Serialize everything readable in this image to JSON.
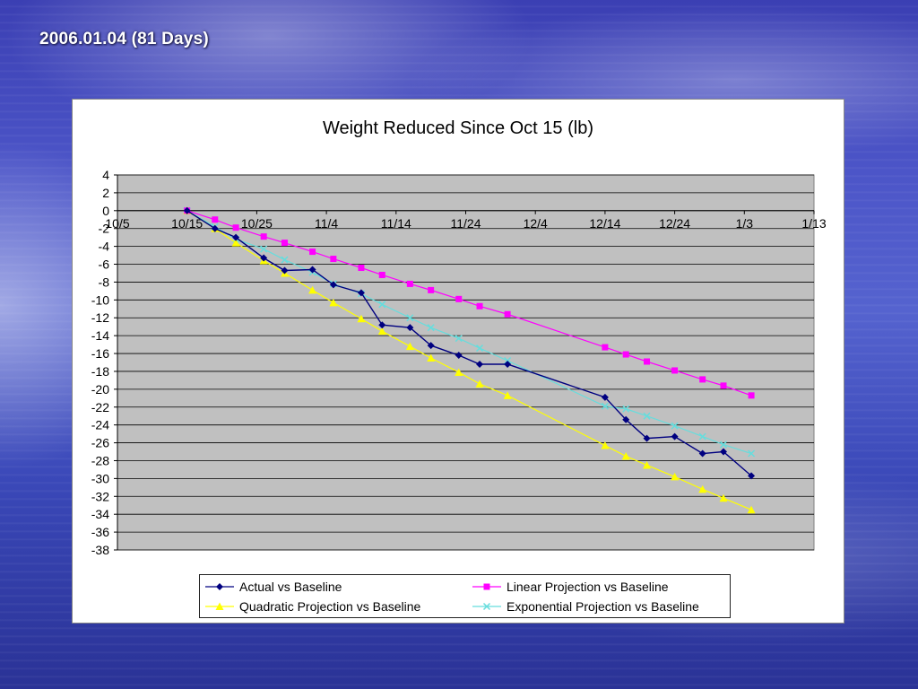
{
  "slide": {
    "title": "2006.01.04 (81 Days)"
  },
  "chart_data": {
    "type": "line",
    "title": "Weight Reduced Since Oct 15 (lb)",
    "xlabel": "",
    "ylabel": "",
    "x_ticks": [
      "10/5",
      "10/15",
      "10/25",
      "11/4",
      "11/14",
      "11/24",
      "12/4",
      "12/14",
      "12/24",
      "1/3",
      "1/13"
    ],
    "y_ticks": [
      4,
      2,
      0,
      -2,
      -4,
      -6,
      -8,
      -10,
      -12,
      -14,
      -16,
      -18,
      -20,
      -22,
      -24,
      -26,
      -28,
      -30,
      -32,
      -34,
      -36,
      -38
    ],
    "xlim": [
      "2005-10-05",
      "2006-01-13"
    ],
    "ylim": [
      -38,
      4
    ],
    "grid": true,
    "plot_area_color": "#c0c0c0",
    "legend_position": "bottom",
    "series": [
      {
        "name": "Actual vs Baseline",
        "color": "#000080",
        "marker": "diamond",
        "points": [
          [
            "2005-10-15",
            0
          ],
          [
            "2005-10-19",
            -2
          ],
          [
            "2005-10-22",
            -3
          ],
          [
            "2005-10-26",
            -5.3
          ],
          [
            "2005-10-29",
            -6.7
          ],
          [
            "2005-11-02",
            -6.6
          ],
          [
            "2005-11-05",
            -8.3
          ],
          [
            "2005-11-09",
            -9.2
          ],
          [
            "2005-11-12",
            -12.8
          ],
          [
            "2005-11-16",
            -13.1
          ],
          [
            "2005-11-19",
            -15.1
          ],
          [
            "2005-11-23",
            -16.2
          ],
          [
            "2005-11-26",
            -17.2
          ],
          [
            "2005-11-30",
            -17.2
          ],
          [
            "2005-12-14",
            -20.9
          ],
          [
            "2005-12-17",
            -23.4
          ],
          [
            "2005-12-20",
            -25.5
          ],
          [
            "2005-12-24",
            -25.3
          ],
          [
            "2005-12-28",
            -27.2
          ],
          [
            "2005-12-31",
            -27
          ],
          [
            "2006-01-04",
            -29.7
          ]
        ]
      },
      {
        "name": "Linear Projection vs Baseline",
        "color": "#ff00ff",
        "marker": "square",
        "points": [
          [
            "2005-10-15",
            0
          ],
          [
            "2005-10-19",
            -1
          ],
          [
            "2005-10-22",
            -1.9
          ],
          [
            "2005-10-26",
            -2.9
          ],
          [
            "2005-10-29",
            -3.6
          ],
          [
            "2005-11-02",
            -4.6
          ],
          [
            "2005-11-05",
            -5.4
          ],
          [
            "2005-11-09",
            -6.4
          ],
          [
            "2005-11-12",
            -7.2
          ],
          [
            "2005-11-16",
            -8.2
          ],
          [
            "2005-11-19",
            -8.9
          ],
          [
            "2005-11-23",
            -9.9
          ],
          [
            "2005-11-26",
            -10.7
          ],
          [
            "2005-11-30",
            -11.6
          ],
          [
            "2005-12-14",
            -15.3
          ],
          [
            "2005-12-17",
            -16.1
          ],
          [
            "2005-12-20",
            -16.9
          ],
          [
            "2005-12-24",
            -17.9
          ],
          [
            "2005-12-28",
            -18.9
          ],
          [
            "2005-12-31",
            -19.6
          ],
          [
            "2006-01-04",
            -20.7
          ]
        ]
      },
      {
        "name": "Quadratic Projection vs Baseline",
        "color": "#ffff00",
        "marker": "triangle",
        "points": [
          [
            "2005-10-15",
            0
          ],
          [
            "2005-10-19",
            -2
          ],
          [
            "2005-10-22",
            -3.6
          ],
          [
            "2005-10-26",
            -5.6
          ],
          [
            "2005-10-29",
            -7
          ],
          [
            "2005-11-02",
            -8.9
          ],
          [
            "2005-11-05",
            -10.3
          ],
          [
            "2005-11-09",
            -12.1
          ],
          [
            "2005-11-12",
            -13.5
          ],
          [
            "2005-11-16",
            -15.2
          ],
          [
            "2005-11-19",
            -16.5
          ],
          [
            "2005-11-23",
            -18.1
          ],
          [
            "2005-11-26",
            -19.4
          ],
          [
            "2005-11-30",
            -20.7
          ],
          [
            "2005-12-14",
            -26.3
          ],
          [
            "2005-12-17",
            -27.5
          ],
          [
            "2005-12-20",
            -28.5
          ],
          [
            "2005-12-24",
            -29.8
          ],
          [
            "2005-12-28",
            -31.2
          ],
          [
            "2005-12-31",
            -32.2
          ],
          [
            "2006-01-04",
            -33.5
          ]
        ]
      },
      {
        "name": "Exponential Projection vs Baseline",
        "color": "#66dddd",
        "marker": "x",
        "points": [
          [
            "2005-10-15",
            0
          ],
          [
            "2005-10-19",
            -1.8
          ],
          [
            "2005-10-22",
            -3.2
          ],
          [
            "2005-10-26",
            -4.3
          ],
          [
            "2005-10-29",
            -5.5
          ],
          [
            "2005-11-02",
            -6.9
          ],
          [
            "2005-11-05",
            -8.2
          ],
          [
            "2005-11-09",
            -9.3
          ],
          [
            "2005-11-12",
            -10.5
          ],
          [
            "2005-11-16",
            -12
          ],
          [
            "2005-11-19",
            -13.1
          ],
          [
            "2005-11-23",
            -14.3
          ],
          [
            "2005-11-26",
            -15.4
          ],
          [
            "2005-11-30",
            -16.8
          ],
          [
            "2005-12-14",
            -21.9
          ],
          [
            "2005-12-17",
            -22.2
          ],
          [
            "2005-12-20",
            -23
          ],
          [
            "2005-12-24",
            -24.1
          ],
          [
            "2005-12-28",
            -25.3
          ],
          [
            "2005-12-31",
            -26.2
          ],
          [
            "2006-01-04",
            -27.2
          ]
        ]
      }
    ]
  }
}
